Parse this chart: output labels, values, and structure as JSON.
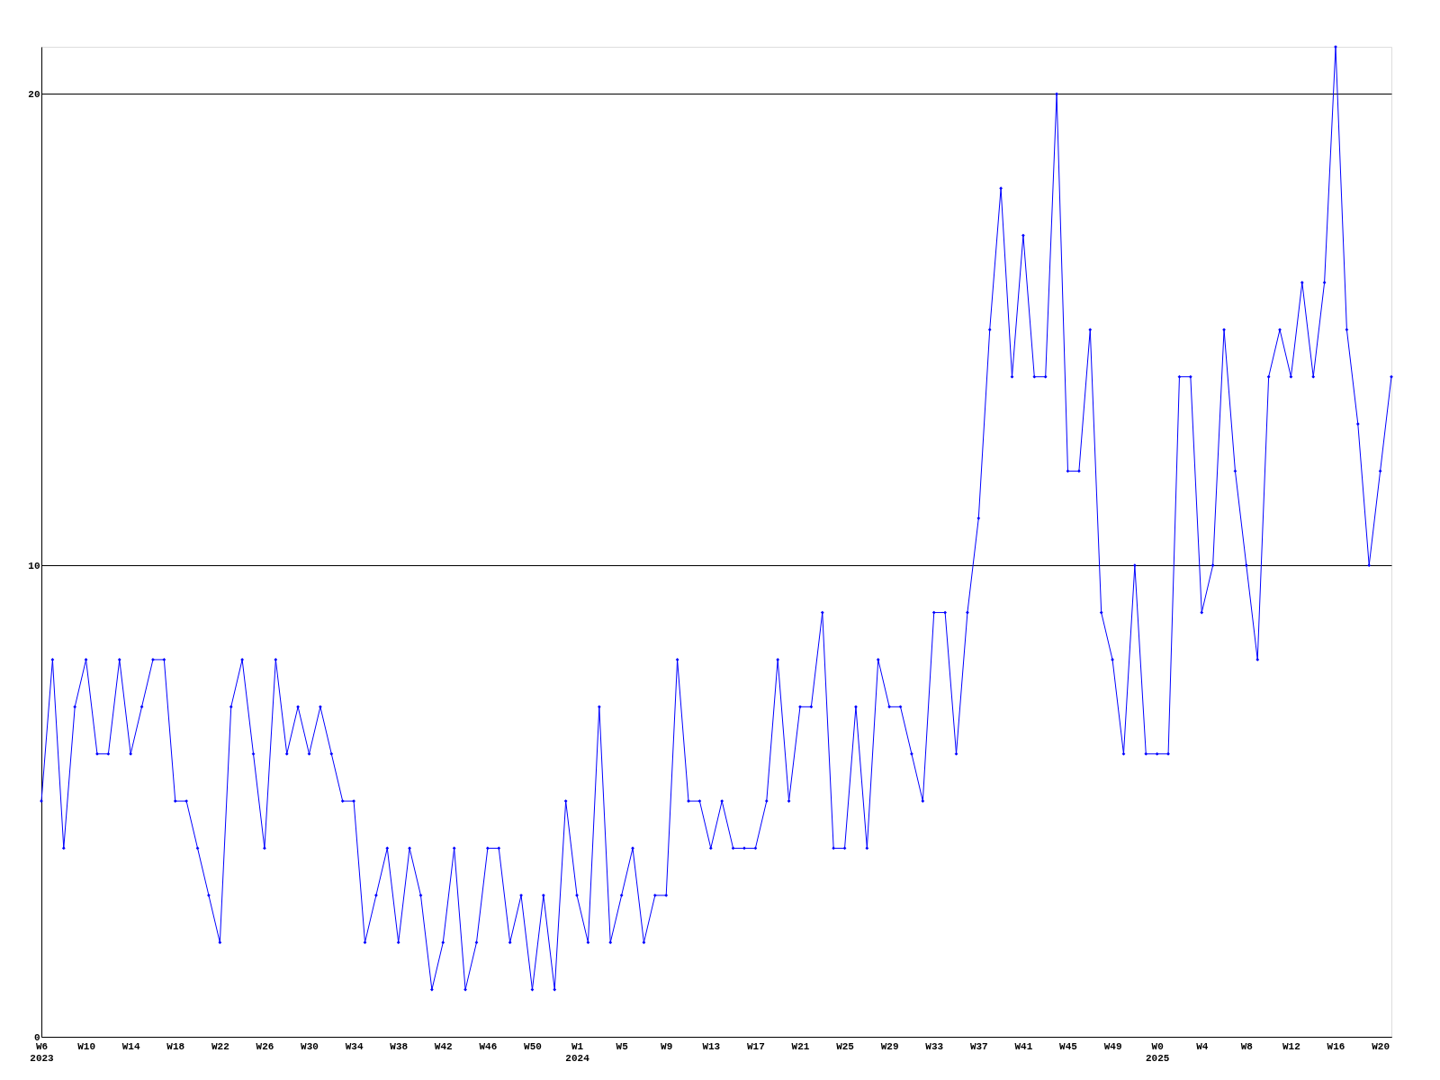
{
  "chart_data": {
    "type": "line",
    "categories": [
      "W6\n2023",
      null,
      null,
      null,
      "W10",
      null,
      null,
      null,
      "W14",
      null,
      null,
      null,
      "W18",
      null,
      null,
      null,
      "W22",
      null,
      null,
      null,
      "W26",
      null,
      null,
      null,
      "W30",
      null,
      null,
      null,
      "W34",
      null,
      null,
      null,
      "W38",
      null,
      null,
      null,
      "W42",
      null,
      null,
      null,
      "W46",
      null,
      null,
      null,
      "W50",
      null,
      null,
      null,
      "W1\n2024",
      null,
      null,
      null,
      "W5",
      null,
      null,
      null,
      "W9",
      null,
      null,
      null,
      "W13",
      null,
      null,
      null,
      "W17",
      null,
      null,
      null,
      "W21",
      null,
      null,
      null,
      "W25",
      null,
      null,
      null,
      "W29",
      null,
      null,
      null,
      "W33",
      null,
      null,
      null,
      "W37",
      null,
      null,
      null,
      "W41",
      null,
      null,
      null,
      "W45",
      null,
      null,
      null,
      "W49",
      null,
      null,
      null,
      "W0\n2025",
      null,
      null,
      null,
      "W4",
      null,
      null,
      null,
      "W8",
      null,
      null,
      null,
      "W12",
      null,
      null,
      null,
      "W16",
      null,
      null,
      null,
      "W20",
      null
    ],
    "series": [
      {
        "color": "#0000ff",
        "values": [
          5,
          8,
          4,
          7,
          8,
          6,
          6,
          8,
          6,
          7,
          8,
          8,
          5,
          5,
          4,
          3,
          2,
          7,
          8,
          6,
          4,
          8,
          6,
          7,
          6,
          7,
          6,
          5,
          5,
          2,
          3,
          4,
          2,
          4,
          3,
          1,
          2,
          4,
          1,
          2,
          4,
          4,
          2,
          3,
          1,
          3,
          1,
          5,
          3,
          2,
          7,
          2,
          3,
          4,
          2,
          3,
          3,
          8,
          5,
          5,
          4,
          5,
          4,
          4,
          4,
          5,
          8,
          5,
          7,
          7,
          9,
          4,
          4,
          7,
          4,
          8,
          7,
          7,
          6,
          5,
          9,
          9,
          6,
          9,
          11,
          15,
          18,
          14,
          17,
          14,
          14,
          20,
          12,
          12,
          15,
          9,
          8,
          6,
          10,
          6,
          6,
          6,
          14,
          14,
          9,
          10,
          15,
          12,
          10,
          8,
          14,
          15,
          14,
          16,
          14,
          16,
          21,
          15,
          13,
          10,
          12,
          14
        ]
      }
    ],
    "ylim": [
      0,
      21
    ],
    "yticks": [
      0,
      10,
      20
    ],
    "grid": "y",
    "marker": "diamond",
    "line_style": "solid"
  }
}
